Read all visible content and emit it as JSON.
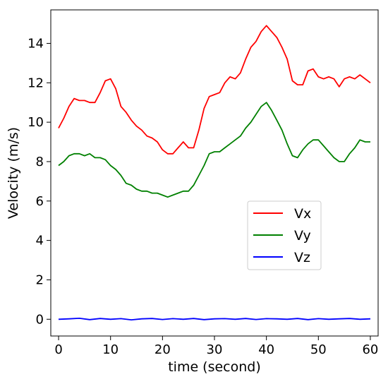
{
  "chart_data": {
    "type": "line",
    "title": "",
    "xlabel": "time (second)",
    "ylabel": "Velocity (m/s)",
    "xlim": [
      -1.5,
      61.5
    ],
    "ylim": [
      -0.85,
      15.7
    ],
    "xticks": [
      0,
      10,
      20,
      30,
      40,
      50,
      60
    ],
    "yticks": [
      0,
      2,
      4,
      6,
      8,
      10,
      12,
      14
    ],
    "xtick_labels": [
      "0",
      "10",
      "20",
      "30",
      "40",
      "50",
      "60"
    ],
    "ytick_labels": [
      "0",
      "2",
      "4",
      "6",
      "8",
      "10",
      "12",
      "14"
    ],
    "grid": false,
    "legend_position": "center-right",
    "series": [
      {
        "name": "Vx",
        "color": "#ff0000",
        "x": [
          0,
          1,
          2,
          3,
          4,
          5,
          6,
          7,
          8,
          9,
          10,
          11,
          12,
          13,
          14,
          15,
          16,
          17,
          18,
          19,
          20,
          21,
          22,
          23,
          24,
          25,
          26,
          27,
          28,
          29,
          30,
          31,
          32,
          33,
          34,
          35,
          36,
          37,
          38,
          39,
          40,
          41,
          42,
          43,
          44,
          45,
          46,
          47,
          48,
          49,
          50,
          51,
          52,
          53,
          54,
          55,
          56,
          57,
          58,
          59,
          60
        ],
        "y": [
          9.7,
          10.2,
          10.8,
          11.2,
          11.1,
          11.1,
          11.0,
          11.0,
          11.5,
          12.1,
          12.2,
          11.7,
          10.8,
          10.5,
          10.1,
          9.8,
          9.6,
          9.3,
          9.2,
          9.0,
          8.6,
          8.4,
          8.4,
          8.7,
          9.0,
          8.7,
          8.7,
          9.6,
          10.7,
          11.3,
          11.4,
          11.5,
          12.0,
          12.3,
          12.2,
          12.5,
          13.2,
          13.8,
          14.1,
          14.6,
          14.9,
          14.6,
          14.3,
          13.8,
          13.2,
          12.1,
          11.9,
          11.9,
          12.6,
          12.7,
          12.3,
          12.2,
          12.3,
          12.2,
          11.8,
          12.2,
          12.3,
          12.2,
          12.4,
          12.2,
          12.0
        ]
      },
      {
        "name": "Vy",
        "color": "#008000",
        "x": [
          0,
          1,
          2,
          3,
          4,
          5,
          6,
          7,
          8,
          9,
          10,
          11,
          12,
          13,
          14,
          15,
          16,
          17,
          18,
          19,
          20,
          21,
          22,
          23,
          24,
          25,
          26,
          27,
          28,
          29,
          30,
          31,
          32,
          33,
          34,
          35,
          36,
          37,
          38,
          39,
          40,
          41,
          42,
          43,
          44,
          45,
          46,
          47,
          48,
          49,
          50,
          51,
          52,
          53,
          54,
          55,
          56,
          57,
          58,
          59,
          60
        ],
        "y": [
          7.8,
          8.0,
          8.3,
          8.4,
          8.4,
          8.3,
          8.4,
          8.2,
          8.2,
          8.1,
          7.8,
          7.6,
          7.3,
          6.9,
          6.8,
          6.6,
          6.5,
          6.5,
          6.4,
          6.4,
          6.3,
          6.2,
          6.3,
          6.4,
          6.5,
          6.5,
          6.8,
          7.3,
          7.8,
          8.4,
          8.5,
          8.5,
          8.7,
          8.9,
          9.1,
          9.3,
          9.7,
          10.0,
          10.4,
          10.8,
          11.0,
          10.6,
          10.1,
          9.6,
          8.9,
          8.3,
          8.2,
          8.6,
          8.9,
          9.1,
          9.1,
          8.8,
          8.5,
          8.2,
          8.0,
          8.0,
          8.4,
          8.7,
          9.1,
          9.0,
          9.0
        ]
      },
      {
        "name": "Vz",
        "color": "#0000ff",
        "x": [
          0,
          2,
          4,
          6,
          8,
          10,
          12,
          14,
          16,
          18,
          20,
          22,
          24,
          26,
          28,
          30,
          32,
          34,
          36,
          38,
          40,
          42,
          44,
          46,
          48,
          50,
          52,
          54,
          56,
          58,
          60
        ],
        "y": [
          0.0,
          0.02,
          0.05,
          -0.02,
          0.04,
          0.0,
          0.03,
          -0.03,
          0.02,
          0.04,
          -0.01,
          0.03,
          0.0,
          0.04,
          -0.02,
          0.02,
          0.03,
          0.0,
          0.04,
          -0.01,
          0.03,
          0.02,
          0.0,
          0.04,
          -0.02,
          0.03,
          0.0,
          0.02,
          0.04,
          0.0,
          0.02
        ]
      }
    ]
  }
}
